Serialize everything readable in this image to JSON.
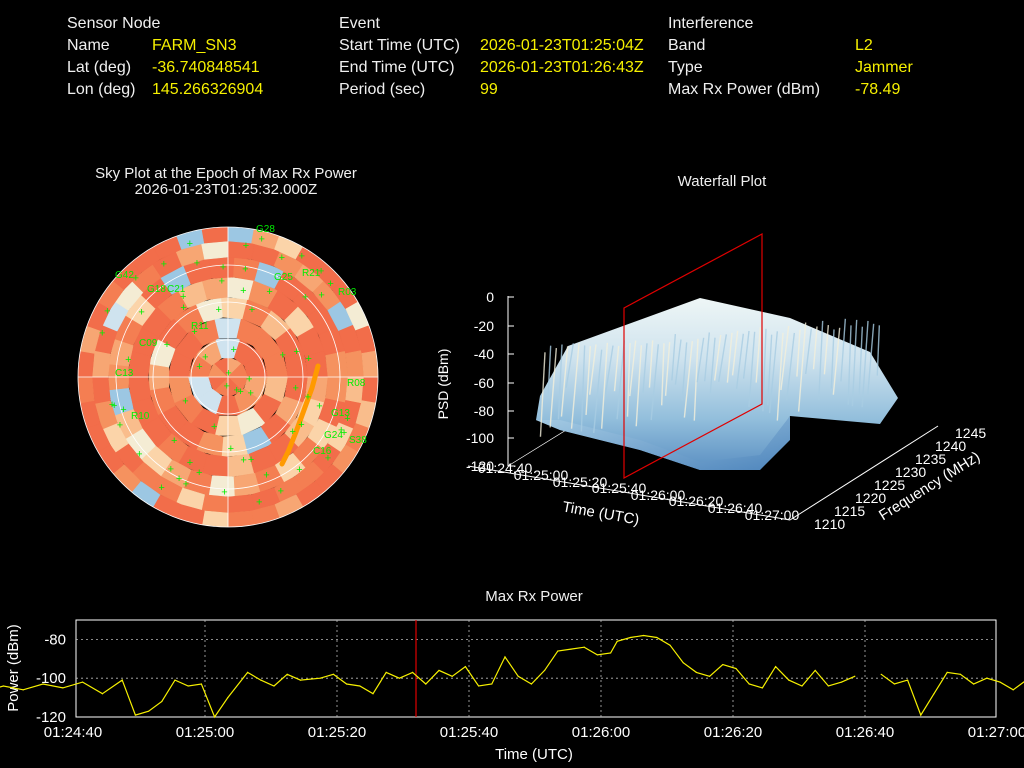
{
  "header": {
    "sensor": {
      "title": "Sensor Node",
      "name_label": "Name",
      "name_value": "FARM_SN3",
      "lat_label": "Lat (deg)",
      "lat_value": "-36.740848541",
      "lon_label": "Lon (deg)",
      "lon_value": "145.266326904"
    },
    "event": {
      "title": "Event",
      "start_label": "Start Time (UTC)",
      "start_value": "2026-01-23T01:25:04Z",
      "end_label": "End Time (UTC)",
      "end_value": "2026-01-23T01:26:43Z",
      "period_label": "Period (sec)",
      "period_value": "99"
    },
    "interference": {
      "title": "Interference",
      "band_label": "Band",
      "band_value": "L2",
      "type_label": "Type",
      "type_value": "Jammer",
      "maxrx_label": "Max Rx Power (dBm)",
      "maxrx_value": "-78.49"
    }
  },
  "colors": {
    "label": "#f0f0f0",
    "value": "#f6f000",
    "trace": "#f6f000",
    "marker": "#e00000",
    "satellite": "#00ee00",
    "jam_track": "#ff9a00"
  },
  "chart_data": [
    {
      "type": "heatmap",
      "title": "Sky Plot at the Epoch of Max Rx Power",
      "subtitle": "2026-01-23T01:25:32.000Z",
      "satellites": [
        "G28",
        "R21",
        "G25",
        "R03",
        "R08",
        "G13",
        "G24",
        "S38",
        "C16",
        "C13",
        "G18",
        "R10",
        "G42",
        "C09",
        "C21",
        "R11"
      ]
    },
    {
      "type": "area",
      "title": "Waterfall Plot",
      "zlabel": "PSD (dBm)",
      "xlabel": "Time (UTC)",
      "ylabel": "Frequency (MHz)",
      "z_ticks": [
        "0",
        "-20",
        "-40",
        "-60",
        "-80",
        "-100",
        "-120"
      ],
      "x_ticks": [
        "01:24:40",
        "01:25:00",
        "01:25:20",
        "01:25:40",
        "01:26:00",
        "01:26:20",
        "01:26:40",
        "01:27:00"
      ],
      "y_ticks": [
        "1210",
        "1215",
        "1220",
        "1225",
        "1230",
        "1235",
        "1240",
        "1245"
      ]
    },
    {
      "type": "line",
      "title": "Max Rx Power",
      "xlabel": "Time (UTC)",
      "ylabel": "Power (dBm)",
      "x_ticks": [
        "01:24:40",
        "01:25:00",
        "01:25:20",
        "01:25:40",
        "01:26:00",
        "01:26:20",
        "01:26:40",
        "01:27:00"
      ],
      "y_ticks": [
        "-80",
        "-100",
        "-120"
      ],
      "ylim": [
        -120,
        -70
      ],
      "marker_time": "01:25:32",
      "series": [
        {
          "points": [
            [
              -53,
              -106
            ],
            [
              -50,
              -108
            ],
            [
              -47,
              -107
            ],
            [
              -44,
              -105
            ],
            [
              -40,
              -109
            ],
            [
              -37,
              -104
            ],
            [
              -34,
              -107
            ],
            [
              -31,
              -104
            ],
            [
              -28,
              -106
            ],
            [
              -25,
              -103
            ],
            [
              -22,
              -105
            ],
            [
              -19,
              -102
            ],
            [
              -16,
              -108
            ],
            [
              -13,
              -101
            ],
            [
              -11,
              -119
            ],
            [
              -9,
              -117
            ],
            [
              -7,
              -112
            ],
            [
              -5,
              -101
            ],
            [
              -3,
              -104
            ],
            [
              -1,
              -103
            ],
            [
              1,
              -120
            ],
            [
              3,
              -110
            ],
            [
              6,
              -97
            ],
            [
              8,
              -101
            ],
            [
              10,
              -104
            ],
            [
              12,
              -98
            ],
            [
              14,
              -101
            ],
            [
              17,
              -100
            ],
            [
              19,
              -98
            ],
            [
              21,
              -103
            ],
            [
              23,
              -104
            ],
            [
              25,
              -108
            ],
            [
              27,
              -97
            ],
            [
              29,
              -100
            ],
            [
              31,
              -97
            ],
            [
              33,
              -103
            ],
            [
              35,
              -96
            ],
            [
              37,
              -99
            ],
            [
              39,
              -94
            ],
            [
              41,
              -104
            ],
            [
              43,
              -103
            ],
            [
              45,
              -89
            ],
            [
              47,
              -99
            ],
            [
              49,
              -103
            ],
            [
              51,
              -96
            ],
            [
              53,
              -86
            ],
            [
              55,
              -85
            ],
            [
              57,
              -84
            ],
            [
              59,
              -88
            ],
            [
              61,
              -87
            ],
            [
              62,
              -81
            ],
            [
              64,
              -79
            ],
            [
              66,
              -78
            ],
            [
              68,
              -79
            ],
            [
              70,
              -83
            ],
            [
              72,
              -92
            ],
            [
              74,
              -97
            ],
            [
              76,
              -99
            ],
            [
              78,
              -93
            ],
            [
              80,
              -95
            ],
            [
              82,
              -103
            ],
            [
              84,
              -105
            ],
            [
              86,
              -94
            ],
            [
              88,
              -101
            ],
            [
              90,
              -104
            ],
            [
              92,
              -96
            ],
            [
              94,
              -104
            ],
            [
              96,
              -102
            ],
            [
              98,
              -99
            ],
            [
              102,
              -98
            ],
            [
              104,
              -103
            ],
            [
              106,
              -101
            ],
            [
              108,
              -119
            ],
            [
              110,
              -108
            ],
            [
              112,
              -97
            ],
            [
              114,
              -98
            ],
            [
              116,
              -103
            ],
            [
              118,
              -100
            ],
            [
              120,
              -102
            ],
            [
              122,
              -106
            ],
            [
              124,
              -101
            ],
            [
              126,
              -98
            ],
            [
              128,
              -104
            ],
            [
              130,
              -106
            ],
            [
              132,
              -98
            ],
            [
              134,
              -100
            ],
            [
              136,
              -103
            ],
            [
              138,
              -105
            ],
            [
              140,
              -101
            ],
            [
              142,
              -102
            ],
            [
              144,
              -103
            ],
            [
              146,
              -101
            ],
            [
              148,
              -106
            ],
            [
              150,
              -102
            ],
            [
              152,
              -103
            ],
            [
              154,
              -105
            ],
            [
              156,
              -104
            ],
            [
              158,
              -102
            ],
            [
              160,
              -107
            ],
            [
              162,
              -103
            ],
            [
              164,
              -105
            ],
            [
              166,
              -104
            ],
            [
              168,
              -108
            ],
            [
              170,
              -105
            ],
            [
              172,
              -104
            ],
            [
              174,
              -110
            ],
            [
              176,
              -104
            ],
            [
              178,
              -107
            ],
            [
              180,
              -97
            ],
            [
              182,
              -103
            ],
            [
              184,
              -105
            ],
            [
              186,
              -104
            ],
            [
              188,
              -106
            ],
            [
              190,
              -103
            ],
            [
              192,
              -105
            ],
            [
              194,
              -104
            ],
            [
              196,
              -106
            ],
            [
              198,
              -105
            ],
            [
              200,
              -104
            ],
            [
              202,
              -105
            ],
            [
              204,
              -103
            ],
            [
              206,
              -105
            ],
            [
              208,
              -104
            ],
            [
              210,
              -107
            ],
            [
              212,
              -105
            ],
            [
              214,
              -104
            ],
            [
              216,
              -106
            ],
            [
              218,
              -105
            ],
            [
              220,
              -104
            ],
            [
              222,
              -106
            ],
            [
              224,
              -105
            ],
            [
              226,
              -103
            ],
            [
              228,
              -106
            ]
          ]
        }
      ]
    }
  ]
}
